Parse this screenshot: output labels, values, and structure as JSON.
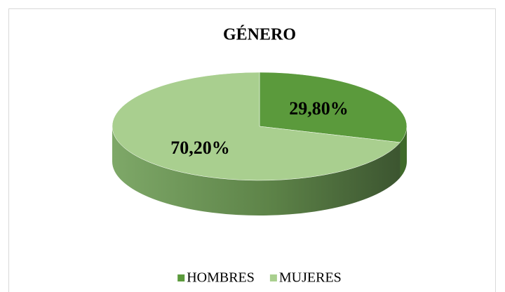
{
  "chart_data": {
    "type": "pie",
    "title": "GÉNERO",
    "categories": [
      "HOMBRES",
      "MUJERES"
    ],
    "values": [
      29.8,
      70.2
    ],
    "value_labels": [
      "29,80%",
      "70,20%"
    ],
    "colors": [
      "#5b9a3c",
      "#a9cf8f"
    ],
    "legend": "bottom"
  }
}
